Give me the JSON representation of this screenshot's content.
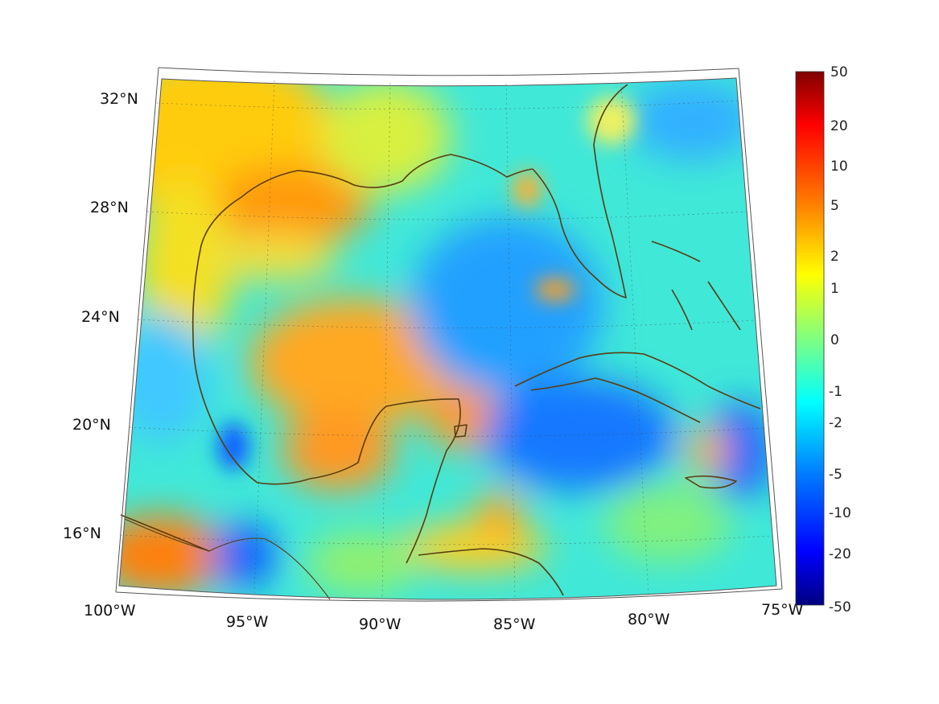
{
  "map": {
    "lon_range": [
      -100,
      -75
    ],
    "lat_range": [
      14,
      33
    ],
    "lon_ticks": [
      {
        "lon": -100,
        "label": "100°W"
      },
      {
        "lon": -95,
        "label": "95°W"
      },
      {
        "lon": -90,
        "label": "90°W"
      },
      {
        "lon": -85,
        "label": "85°W"
      },
      {
        "lon": -80,
        "label": "80°W"
      },
      {
        "lon": -75,
        "label": "75°W"
      }
    ],
    "lat_ticks": [
      {
        "lat": 32,
        "label": "32°N"
      },
      {
        "lat": 28,
        "label": "28°N"
      },
      {
        "lat": 24,
        "label": "24°N"
      },
      {
        "lat": 20,
        "label": "20°N"
      },
      {
        "lat": 16,
        "label": "16°N"
      }
    ],
    "grid": true,
    "coastline_color": "#5a3c10"
  },
  "colorbar": {
    "labels": [
      "50",
      "20",
      "10",
      "5",
      "2",
      "1",
      "0",
      "-1",
      "-2",
      "-5",
      "-10",
      "-20",
      "-50"
    ],
    "colors": [
      "#800000",
      "#e00000",
      "#ff4000",
      "#ff9000",
      "#ffd000",
      "#ffff00",
      "#9fff60",
      "#20ffe0",
      "#00b0ff",
      "#0070ff",
      "#0030e0",
      "#0000b0",
      "#000080"
    ]
  }
}
